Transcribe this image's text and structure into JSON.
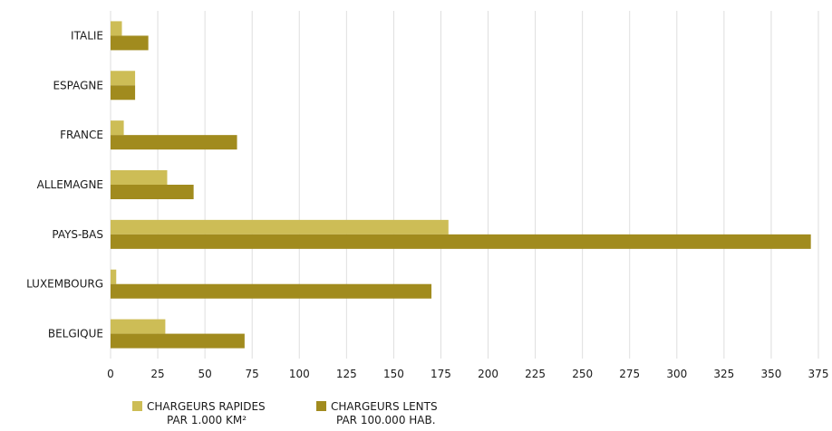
{
  "colors": {
    "fast": "#cdbd56",
    "slow": "#a18b1e",
    "grid": "#dedede"
  },
  "legend": {
    "fast": {
      "line1": "CHARGEURS RAPIDES",
      "line2": "PAR 1.000 KM²"
    },
    "slow": {
      "line1": "CHARGEURS LENTS",
      "line2": "PAR 100.000 HAB."
    }
  },
  "chart_data": {
    "type": "bar",
    "orientation": "horizontal",
    "categories": [
      "ITALIE",
      "ESPAGNE",
      "FRANCE",
      "ALLEMAGNE",
      "PAYS-BAS",
      "LUXEMBOURG",
      "BELGIQUE"
    ],
    "series": [
      {
        "name": "CHARGEURS RAPIDES PAR 1.000 KM²",
        "values": [
          6,
          13,
          7,
          30,
          179,
          3,
          29
        ]
      },
      {
        "name": "CHARGEURS LENTS PAR 100.000 HAB.",
        "values": [
          20,
          13,
          67,
          44,
          371,
          170,
          71
        ]
      }
    ],
    "xlim": [
      0,
      375
    ],
    "xticks": [
      0,
      25,
      50,
      75,
      100,
      125,
      150,
      175,
      200,
      225,
      250,
      275,
      300,
      325,
      350,
      375
    ],
    "grid": "vertical",
    "legend_position": "bottom-left"
  }
}
